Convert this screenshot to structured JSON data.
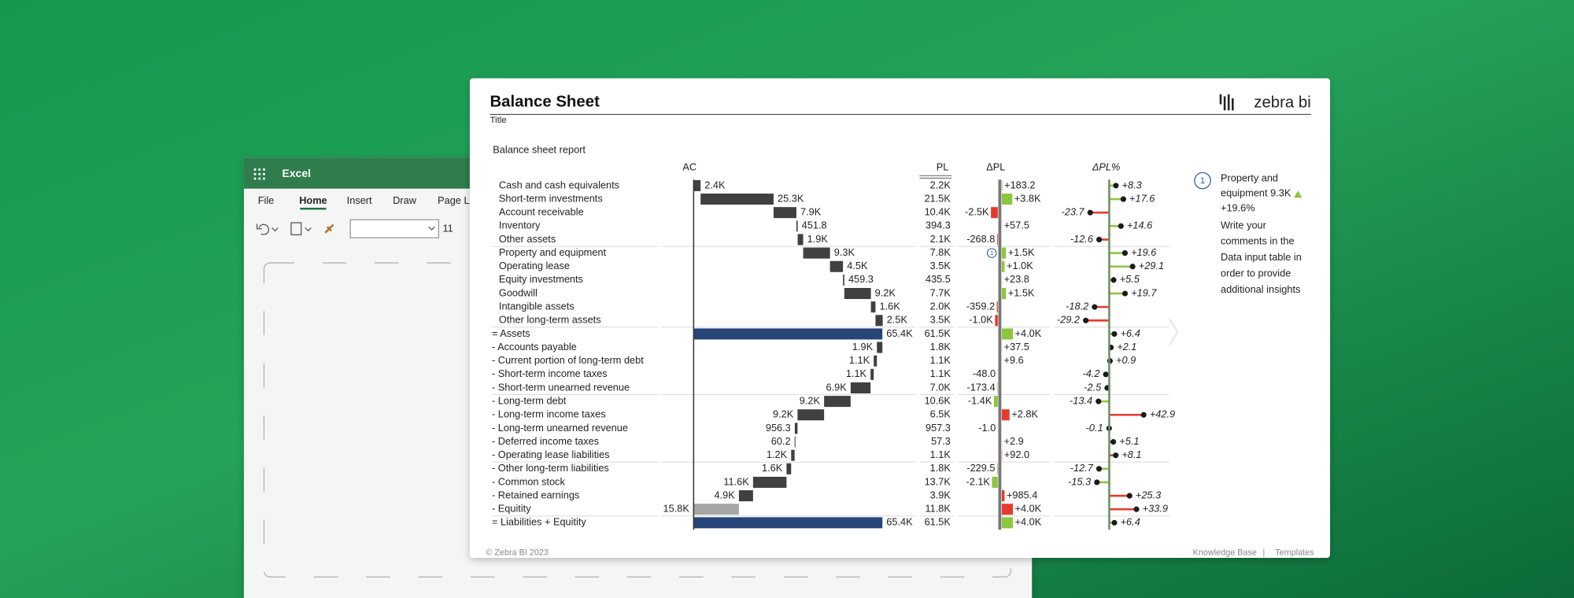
{
  "app": {
    "name": "Excel",
    "tabs": [
      "File",
      "Home",
      "Insert",
      "Draw",
      "Page La"
    ],
    "font_size": "11"
  },
  "report": {
    "title": "Balance Sheet",
    "subtitle": "Title",
    "brand": "zebra bi",
    "heading": "Balance sheet report",
    "columns": {
      "ac": "AC",
      "pl": "PL",
      "dpl": "ΔPL",
      "dplp": "ΔPL%"
    },
    "colors": {
      "change": "#404040",
      "total": "#26467a",
      "residual": "#a6a6a6",
      "good": "#8cc63f",
      "bad": "#e53a2e"
    },
    "rows": [
      {
        "name": "Cash and cash equivalents",
        "kind": "plus",
        "ac": 2400,
        "ac_label": "2.4K",
        "pl": "2.2K",
        "dpl": 183.2,
        "dpl_label": "+183.2",
        "dplp": 8.3,
        "dplp_label": "+8.3"
      },
      {
        "name": "Short-term investments",
        "kind": "plus",
        "ac": 25300,
        "ac_label": "25.3K",
        "pl": "21.5K",
        "dpl": 3800,
        "dpl_label": "+3.8K",
        "dplp": 17.6,
        "dplp_label": "+17.6"
      },
      {
        "name": "Account receivable",
        "kind": "plus",
        "ac": 7900,
        "ac_label": "7.9K",
        "pl": "10.4K",
        "dpl": -2500,
        "dpl_label": "-2.5K",
        "dplp": -23.7
      },
      {
        "name": "Inventory",
        "kind": "plus",
        "ac": 451.8,
        "pl": "394.3",
        "dpl": 57.5,
        "dpl_label": "+57.5",
        "dplp": 14.6,
        "dplp_label": "+14.6"
      },
      {
        "name": "Other assets",
        "kind": "plus",
        "ac": 1900,
        "ac_label": "1.9K",
        "pl": "2.1K",
        "dpl": -268.8,
        "dplp": -12.6
      },
      {
        "name": "Property and equipment",
        "kind": "plus",
        "ac": 9300,
        "ac_label": "9.3K",
        "pl": "7.8K",
        "dpl": 1500,
        "dpl_label": "+1.5K",
        "dplp": 19.6,
        "dplp_label": "+19.6"
      },
      {
        "name": "Operating lease",
        "kind": "plus",
        "ac": 4500,
        "ac_label": "4.5K",
        "pl": "3.5K",
        "dpl": 1000,
        "dpl_label": "+1.0K",
        "dplp": 29.1,
        "dplp_label": "+29.1"
      },
      {
        "name": "Equity investments",
        "kind": "plus",
        "ac": 459.3,
        "pl": "435.5",
        "dpl": 23.8,
        "dpl_label": "+23.8",
        "dplp": 5.5,
        "dplp_label": "+5.5"
      },
      {
        "name": "Goodwill",
        "kind": "plus",
        "ac": 9200,
        "ac_label": "9.2K",
        "pl": "7.7K",
        "dpl": 1500,
        "dpl_label": "+1.5K",
        "dplp": 19.7,
        "dplp_label": "+19.7"
      },
      {
        "name": "Intangible assets",
        "kind": "plus",
        "ac": 1600,
        "ac_label": "1.6K",
        "pl": "2.0K",
        "dpl": -359.2,
        "dplp": -18.2
      },
      {
        "name": "Other long-term assets",
        "kind": "plus",
        "ac": 2500,
        "ac_label": "2.5K",
        "pl": "3.5K",
        "dpl": -1000,
        "dpl_label": "-1.0K",
        "dplp": -29.2
      },
      {
        "name": "= Assets",
        "kind": "total",
        "ac": 65400,
        "ac_label": "65.4K",
        "pl": "61.5K",
        "dpl": 4000,
        "dpl_label": "+4.0K",
        "dplp": 6.4,
        "dplp_label": "+6.4"
      },
      {
        "name": "- Accounts payable",
        "kind": "minus",
        "ac": 1900,
        "ac_label": "1.9K",
        "pl": "1.8K",
        "dpl": 37.5,
        "dpl_label": "+37.5",
        "dplp": 2.1,
        "dplp_label": "+2.1"
      },
      {
        "name": "- Current portion of long-term debt",
        "kind": "minus",
        "ac": 1100,
        "ac_label": "1.1K",
        "pl": "1.1K",
        "dpl": 9.6,
        "dpl_label": "+9.6",
        "dplp": 0.9,
        "dplp_label": "+0.9"
      },
      {
        "name": "- Short-term income taxes",
        "kind": "minus",
        "ac": 1100,
        "ac_label": "1.1K",
        "pl": "1.1K",
        "dpl": -48.0,
        "dpl_label": "-48.0",
        "dplp": -4.2
      },
      {
        "name": "- Short-term unearned revenue",
        "kind": "minus",
        "ac": 6900,
        "ac_label": "6.9K",
        "pl": "7.0K",
        "dpl": -173.4,
        "dplp": -2.5
      },
      {
        "name": "- Long-term debt",
        "kind": "minus",
        "ac": 9200,
        "ac_label": "9.2K",
        "pl": "10.6K",
        "dpl": -1400,
        "dpl_label": "-1.4K",
        "dplp": -13.4
      },
      {
        "name": "- Long-term income taxes",
        "kind": "minus",
        "ac": 9200,
        "ac_label": "9.2K",
        "pl": "6.5K",
        "dpl": 2800,
        "dpl_label": "+2.8K",
        "dplp": 42.9,
        "dplp_label": "+42.9"
      },
      {
        "name": "- Long-term unearned revenue",
        "kind": "minus",
        "ac": 956.3,
        "pl": "957.3",
        "dpl": -1.0,
        "dpl_label": "-1.0",
        "dplp": -0.1
      },
      {
        "name": "- Deferred income taxes",
        "kind": "minus",
        "ac": 60.2,
        "pl": "57.3",
        "dpl": 2.9,
        "dpl_label": "+2.9",
        "dplp": 5.1,
        "dplp_label": "+5.1"
      },
      {
        "name": "- Operating lease liabilities",
        "kind": "minus",
        "ac": 1200,
        "ac_label": "1.2K",
        "pl": "1.1K",
        "dpl": 92.0,
        "dpl_label": "+92.0",
        "dplp": 8.1,
        "dplp_label": "+8.1"
      },
      {
        "name": "- Other long-term liabilities",
        "kind": "minus",
        "ac": 1600,
        "ac_label": "1.6K",
        "pl": "1.8K",
        "dpl": -229.5,
        "dplp": -12.7
      },
      {
        "name": "- Common stock",
        "kind": "minus",
        "ac": 11600,
        "ac_label": "11.6K",
        "pl": "13.7K",
        "dpl": -2100,
        "dpl_label": "-2.1K",
        "dplp": -15.3
      },
      {
        "name": "- Retained earnings",
        "kind": "minus",
        "ac": 4900,
        "ac_label": "4.9K",
        "pl": "3.9K",
        "dpl": 985.4,
        "dpl_label": "+985.4",
        "dplp": 25.3,
        "dplp_label": "+25.3"
      },
      {
        "name": "- Equitity",
        "kind": "residual",
        "ac": 15800,
        "ac_label": "15.8K",
        "pl": "11.8K",
        "dpl": 4000,
        "dpl_label": "+4.0K",
        "dplp": 33.9,
        "dplp_label": "+33.9"
      },
      {
        "name": "= Liabilities + Equitity",
        "kind": "total",
        "ac": 65400,
        "ac_label": "65.4K",
        "pl": "61.5K",
        "dpl": 4000,
        "dpl_label": "+4.0K",
        "dplp": 6.4,
        "dplp_label": "+6.4"
      }
    ],
    "comment": {
      "number": "1",
      "lines": [
        "Property and",
        "equipment 9.3K",
        "+19.6%"
      ],
      "body": [
        "Write your",
        "comments in the",
        "Data input table in",
        "order to provide",
        "additional insights"
      ]
    },
    "footer": {
      "copyright": "© Zebra BI 2023",
      "links": [
        "Knowledge Base",
        "Templates"
      ],
      "separator": "|"
    }
  }
}
